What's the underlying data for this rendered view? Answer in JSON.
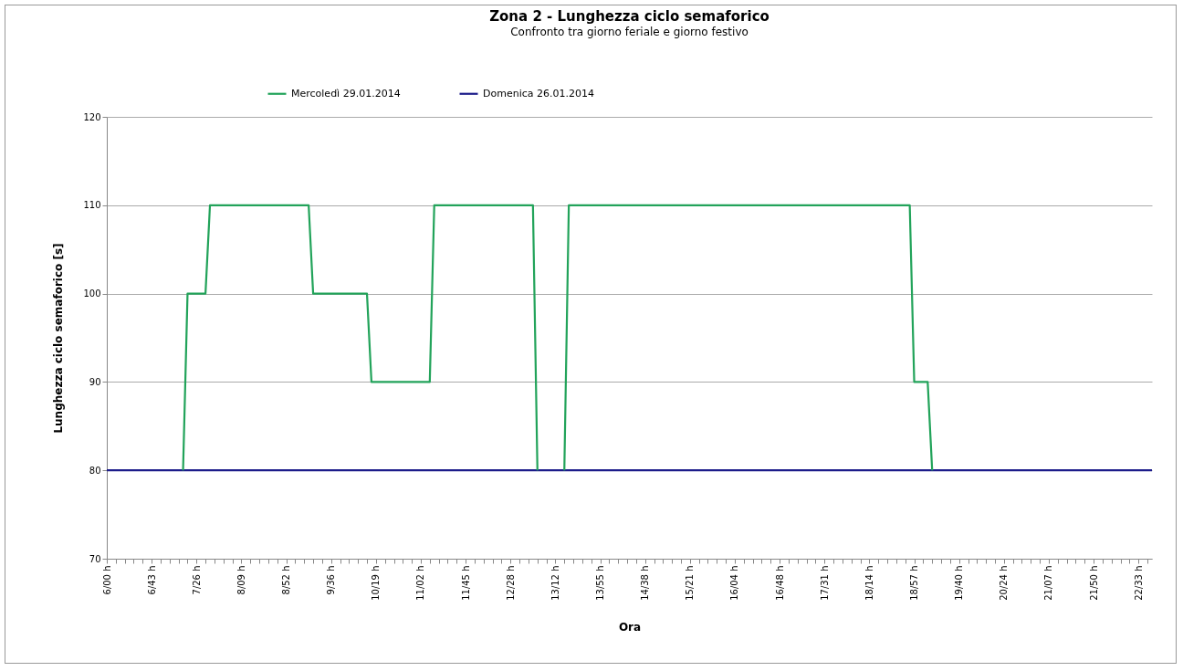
{
  "chart_data": {
    "type": "line",
    "title": "Zona 2 - Lunghezza ciclo semaforico",
    "subtitle": "Confronto tra giorno feriale e giorno festivo",
    "xlabel": "Ora",
    "ylabel": "Lunghezza ciclo semaforico [s]",
    "categories": [
      "6/00 h",
      null,
      null,
      null,
      null,
      null,
      null,
      null,
      null,
      null,
      "6/43 h",
      null,
      null,
      null,
      null,
      null,
      null,
      null,
      null,
      null,
      "7/26 h",
      null,
      null,
      null,
      null,
      null,
      null,
      null,
      null,
      null,
      "8/09 h",
      null,
      null,
      null,
      null,
      null,
      null,
      null,
      null,
      null,
      "8/52 h",
      null,
      null,
      null,
      null,
      null,
      null,
      null,
      null,
      null,
      "9/36 h",
      null,
      null,
      null,
      null,
      null,
      null,
      null,
      null,
      null,
      "10/19 h",
      null,
      null,
      null,
      null,
      null,
      null,
      null,
      null,
      null,
      "11/02 h",
      null,
      null,
      null,
      null,
      null,
      null,
      null,
      null,
      null,
      "11/45 h",
      null,
      null,
      null,
      null,
      null,
      null,
      null,
      null,
      null,
      "12/28 h",
      null,
      null,
      null,
      null,
      null,
      null,
      null,
      null,
      null,
      "13/12 h",
      null,
      null,
      null,
      null,
      null,
      null,
      null,
      null,
      null,
      "13/55 h",
      null,
      null,
      null,
      null,
      null,
      null,
      null,
      null,
      null,
      "14/38 h",
      null,
      null,
      null,
      null,
      null,
      null,
      null,
      null,
      null,
      "15/21 h",
      null,
      null,
      null,
      null,
      null,
      null,
      null,
      null,
      null,
      "16/04 h",
      null,
      null,
      null,
      null,
      null,
      null,
      null,
      null,
      null,
      "16/48 h",
      null,
      null,
      null,
      null,
      null,
      null,
      null,
      null,
      null,
      "17/31 h",
      null,
      null,
      null,
      null,
      null,
      null,
      null,
      null,
      null,
      "18/14 h",
      null,
      null,
      null,
      null,
      null,
      null,
      null,
      null,
      null,
      "18/57 h",
      null,
      null,
      null,
      null,
      null,
      null,
      null,
      null,
      null,
      "19/40 h",
      null,
      null,
      null,
      null,
      null,
      null,
      null,
      null,
      null,
      "20/24 h",
      null,
      null,
      null,
      null,
      null,
      null,
      null,
      null,
      null,
      "21/07 h",
      null,
      null,
      null,
      null,
      null,
      null,
      null,
      null,
      null,
      "21/50 h",
      null,
      null,
      null,
      null,
      null,
      null,
      null,
      null,
      null,
      "22/33 h",
      null,
      null,
      null
    ],
    "series": [
      {
        "name": "Mercoledì 29.01.2014",
        "color": "#22a35a",
        "values": [
          null,
          null,
          null,
          null,
          null,
          null,
          null,
          null,
          null,
          null,
          null,
          null,
          null,
          null,
          null,
          null,
          null,
          80,
          100,
          100,
          100,
          100,
          100,
          110,
          110,
          110,
          110,
          110,
          110,
          110,
          110,
          110,
          110,
          110,
          110,
          110,
          110,
          110,
          110,
          110,
          110,
          110,
          110,
          110,
          110,
          110,
          100,
          100,
          100,
          100,
          100,
          100,
          100,
          100,
          100,
          100,
          100,
          100,
          100,
          90,
          90,
          90,
          90,
          90,
          90,
          90,
          90,
          90,
          90,
          90,
          90,
          90,
          90,
          110,
          110,
          110,
          110,
          110,
          110,
          110,
          110,
          110,
          110,
          110,
          110,
          110,
          110,
          110,
          110,
          110,
          110,
          110,
          110,
          110,
          110,
          110,
          80,
          null,
          null,
          null,
          null,
          null,
          80,
          110,
          110,
          110,
          110,
          110,
          110,
          110,
          110,
          110,
          110,
          110,
          110,
          110,
          110,
          110,
          110,
          110,
          110,
          110,
          110,
          110,
          110,
          110,
          110,
          110,
          110,
          110,
          110,
          110,
          110,
          110,
          110,
          110,
          110,
          110,
          110,
          110,
          110,
          110,
          110,
          110,
          110,
          110,
          110,
          110,
          110,
          110,
          110,
          110,
          110,
          110,
          110,
          110,
          110,
          110,
          110,
          110,
          110,
          110,
          110,
          110,
          110,
          110,
          110,
          110,
          110,
          110,
          110,
          110,
          110,
          110,
          110,
          110,
          110,
          110,
          110,
          110,
          90,
          90,
          90,
          90,
          80,
          null,
          null,
          null,
          null,
          null,
          null,
          null,
          null,
          null,
          null,
          null,
          null,
          null,
          null,
          null,
          null,
          null,
          null,
          null,
          null,
          null,
          null,
          null,
          null,
          null,
          null,
          null,
          null,
          null,
          null,
          null,
          null,
          null,
          null,
          null,
          null,
          null,
          null,
          null,
          null,
          null,
          null,
          null,
          null,
          null,
          null,
          null,
          null,
          null
        ]
      },
      {
        "name": "Domenica 26.01.2014",
        "color": "#1c1c8a",
        "values": [
          80,
          80,
          80,
          80,
          80,
          80,
          80,
          80,
          80,
          80,
          80,
          80,
          80,
          80,
          80,
          80,
          80,
          80,
          80,
          80,
          80,
          80,
          80,
          80,
          80,
          80,
          80,
          80,
          80,
          80,
          80,
          80,
          80,
          80,
          80,
          80,
          80,
          80,
          80,
          80,
          80,
          80,
          80,
          80,
          80,
          80,
          80,
          80,
          80,
          80,
          80,
          80,
          80,
          80,
          80,
          80,
          80,
          80,
          80,
          80,
          80,
          80,
          80,
          80,
          80,
          80,
          80,
          80,
          80,
          80,
          80,
          80,
          80,
          80,
          80,
          80,
          80,
          80,
          80,
          80,
          80,
          80,
          80,
          80,
          80,
          80,
          80,
          80,
          80,
          80,
          80,
          80,
          80,
          80,
          80,
          80,
          80,
          80,
          80,
          80,
          80,
          80,
          80,
          80,
          80,
          80,
          80,
          80,
          80,
          80,
          80,
          80,
          80,
          80,
          80,
          80,
          80,
          80,
          80,
          80,
          80,
          80,
          80,
          80,
          80,
          80,
          80,
          80,
          80,
          80,
          80,
          80,
          80,
          80,
          80,
          80,
          80,
          80,
          80,
          80,
          80,
          80,
          80,
          80,
          80,
          80,
          80,
          80,
          80,
          80,
          80,
          80,
          80,
          80,
          80,
          80,
          80,
          80,
          80,
          80,
          80,
          80,
          80,
          80,
          80,
          80,
          80,
          80,
          80,
          80,
          80,
          80,
          80,
          80,
          80,
          80,
          80,
          80,
          80,
          80,
          80,
          80,
          80,
          80,
          80,
          80,
          80,
          80,
          80,
          80,
          80,
          80,
          80,
          80,
          80,
          80,
          80,
          80,
          80,
          80,
          80,
          80,
          80,
          80,
          80,
          80,
          80,
          80,
          80,
          80,
          80,
          80,
          80,
          80,
          80,
          80,
          80,
          80,
          80,
          80,
          80,
          80,
          80,
          80,
          80,
          80,
          80,
          80,
          80,
          80,
          80,
          80,
          80,
          80
        ]
      }
    ],
    "ylim": [
      70,
      120
    ],
    "yticks": [
      70,
      80,
      90,
      100,
      110,
      120
    ],
    "grid": "y",
    "legend": "top",
    "marker": "none",
    "line_style": "solid"
  }
}
